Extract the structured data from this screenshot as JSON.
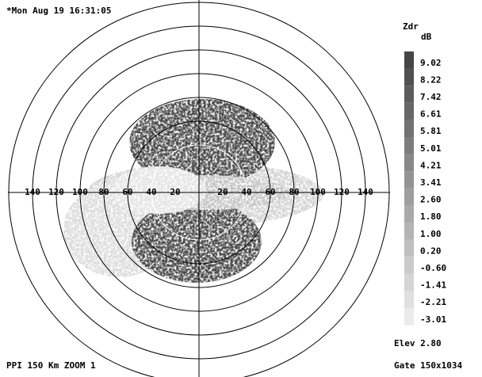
{
  "header": {
    "timestamp": "*Mon Aug 19 16:31:05"
  },
  "legend": {
    "title": "Zdr",
    "unit": "dB",
    "labels": [
      "9.02",
      "8.22",
      "7.42",
      "6.61",
      "5.81",
      "5.01",
      "4.21",
      "3.41",
      "2.60",
      "1.80",
      "1.00",
      "0.20",
      "-0.60",
      "-1.41",
      "-2.21",
      "-3.01"
    ]
  },
  "range_labels": {
    "left": [
      "140",
      "120",
      "100",
      "80",
      "60",
      "40",
      "20"
    ],
    "right": [
      "20",
      "40",
      "60",
      "80",
      "100",
      "120",
      "140"
    ]
  },
  "footer": {
    "mode": "PPI 150 Km ZOOM 1",
    "elevation": "Elev 2.80",
    "gate": "Gate 150x1034"
  }
}
